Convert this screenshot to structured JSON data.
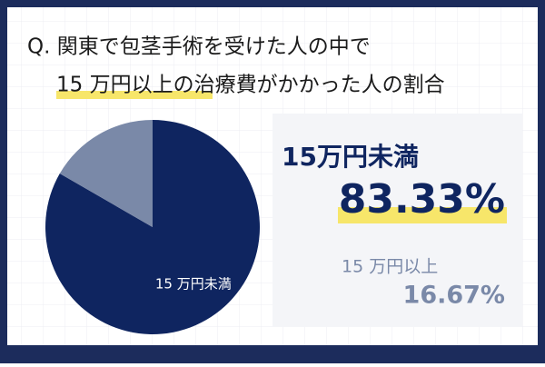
{
  "chart_data": {
    "type": "pie",
    "title_lines": [
      "Q. 関東で包茎手術を受けた人の中で",
      "15 万円以上の治療費がかかった人の割合"
    ],
    "categories": [
      "15万円未満",
      "15 万円以上"
    ],
    "slice_labels": [
      "15 万円未満",
      null
    ],
    "values": [
      83.33,
      16.67
    ],
    "value_labels": [
      "83.33%",
      "16.67%"
    ],
    "colors": [
      "#0f2560",
      "#7a89a8"
    ]
  }
}
